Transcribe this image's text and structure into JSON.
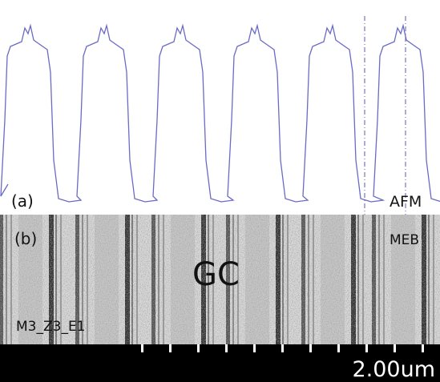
{
  "panel_a": {
    "label": "(a)",
    "tag": "AFM"
  },
  "panel_b": {
    "label": "(b)",
    "tag": "MEB",
    "region": "GC",
    "sample": "M3_Z3_E1"
  },
  "scale_bar": {
    "label": "2.00um"
  }
}
